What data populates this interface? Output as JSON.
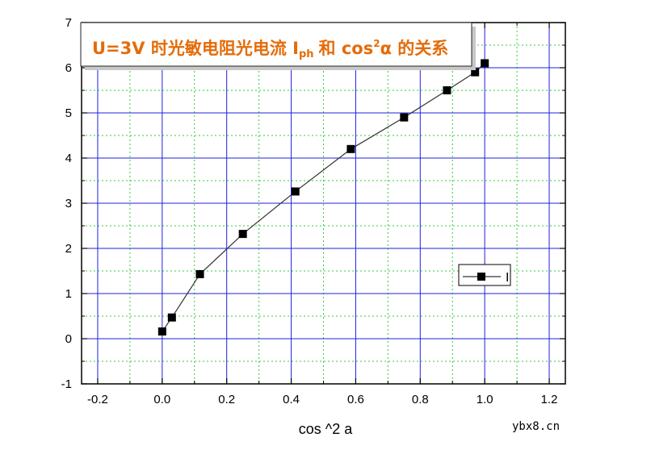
{
  "chart_data": {
    "type": "line",
    "title": {
      "part1": "U=3V 时光敏电阻光电流 I",
      "sub": "ph",
      "part2": "和 cos",
      "sup": "2",
      "part3": "α 的关系"
    },
    "xlabel": "cos ^2 a",
    "ylabel": "",
    "xlim": [
      -0.25,
      1.25
    ],
    "ylim": [
      -1,
      7
    ],
    "x_ticks": [
      -0.2,
      0.0,
      0.2,
      0.4,
      0.6,
      0.8,
      1.0,
      1.2
    ],
    "x_tick_labels": [
      "-0.2",
      "0.0",
      "0.2",
      "0.4",
      "0.6",
      "0.8",
      "1.0",
      "1.2"
    ],
    "y_ticks": [
      -1,
      0,
      1,
      2,
      3,
      4,
      5,
      6,
      7
    ],
    "y_tick_labels": [
      "-1",
      "0",
      "1",
      "2",
      "3",
      "4",
      "5",
      "6",
      "7"
    ],
    "grid": {
      "major": true,
      "minor": true,
      "major_color": "#2020dd",
      "minor_color": "#33cc33"
    },
    "series": [
      {
        "name": "I",
        "marker": "square",
        "color": "#000000",
        "x": [
          0.0,
          0.03,
          0.117,
          0.25,
          0.413,
          0.585,
          0.75,
          0.883,
          0.97,
          1.0
        ],
        "y": [
          0.16,
          0.47,
          1.43,
          2.32,
          3.26,
          4.2,
          4.9,
          5.5,
          5.9,
          6.1
        ]
      }
    ],
    "legend": {
      "placement": "right",
      "entries": [
        "I"
      ]
    }
  },
  "watermark": "ybx8.cn"
}
